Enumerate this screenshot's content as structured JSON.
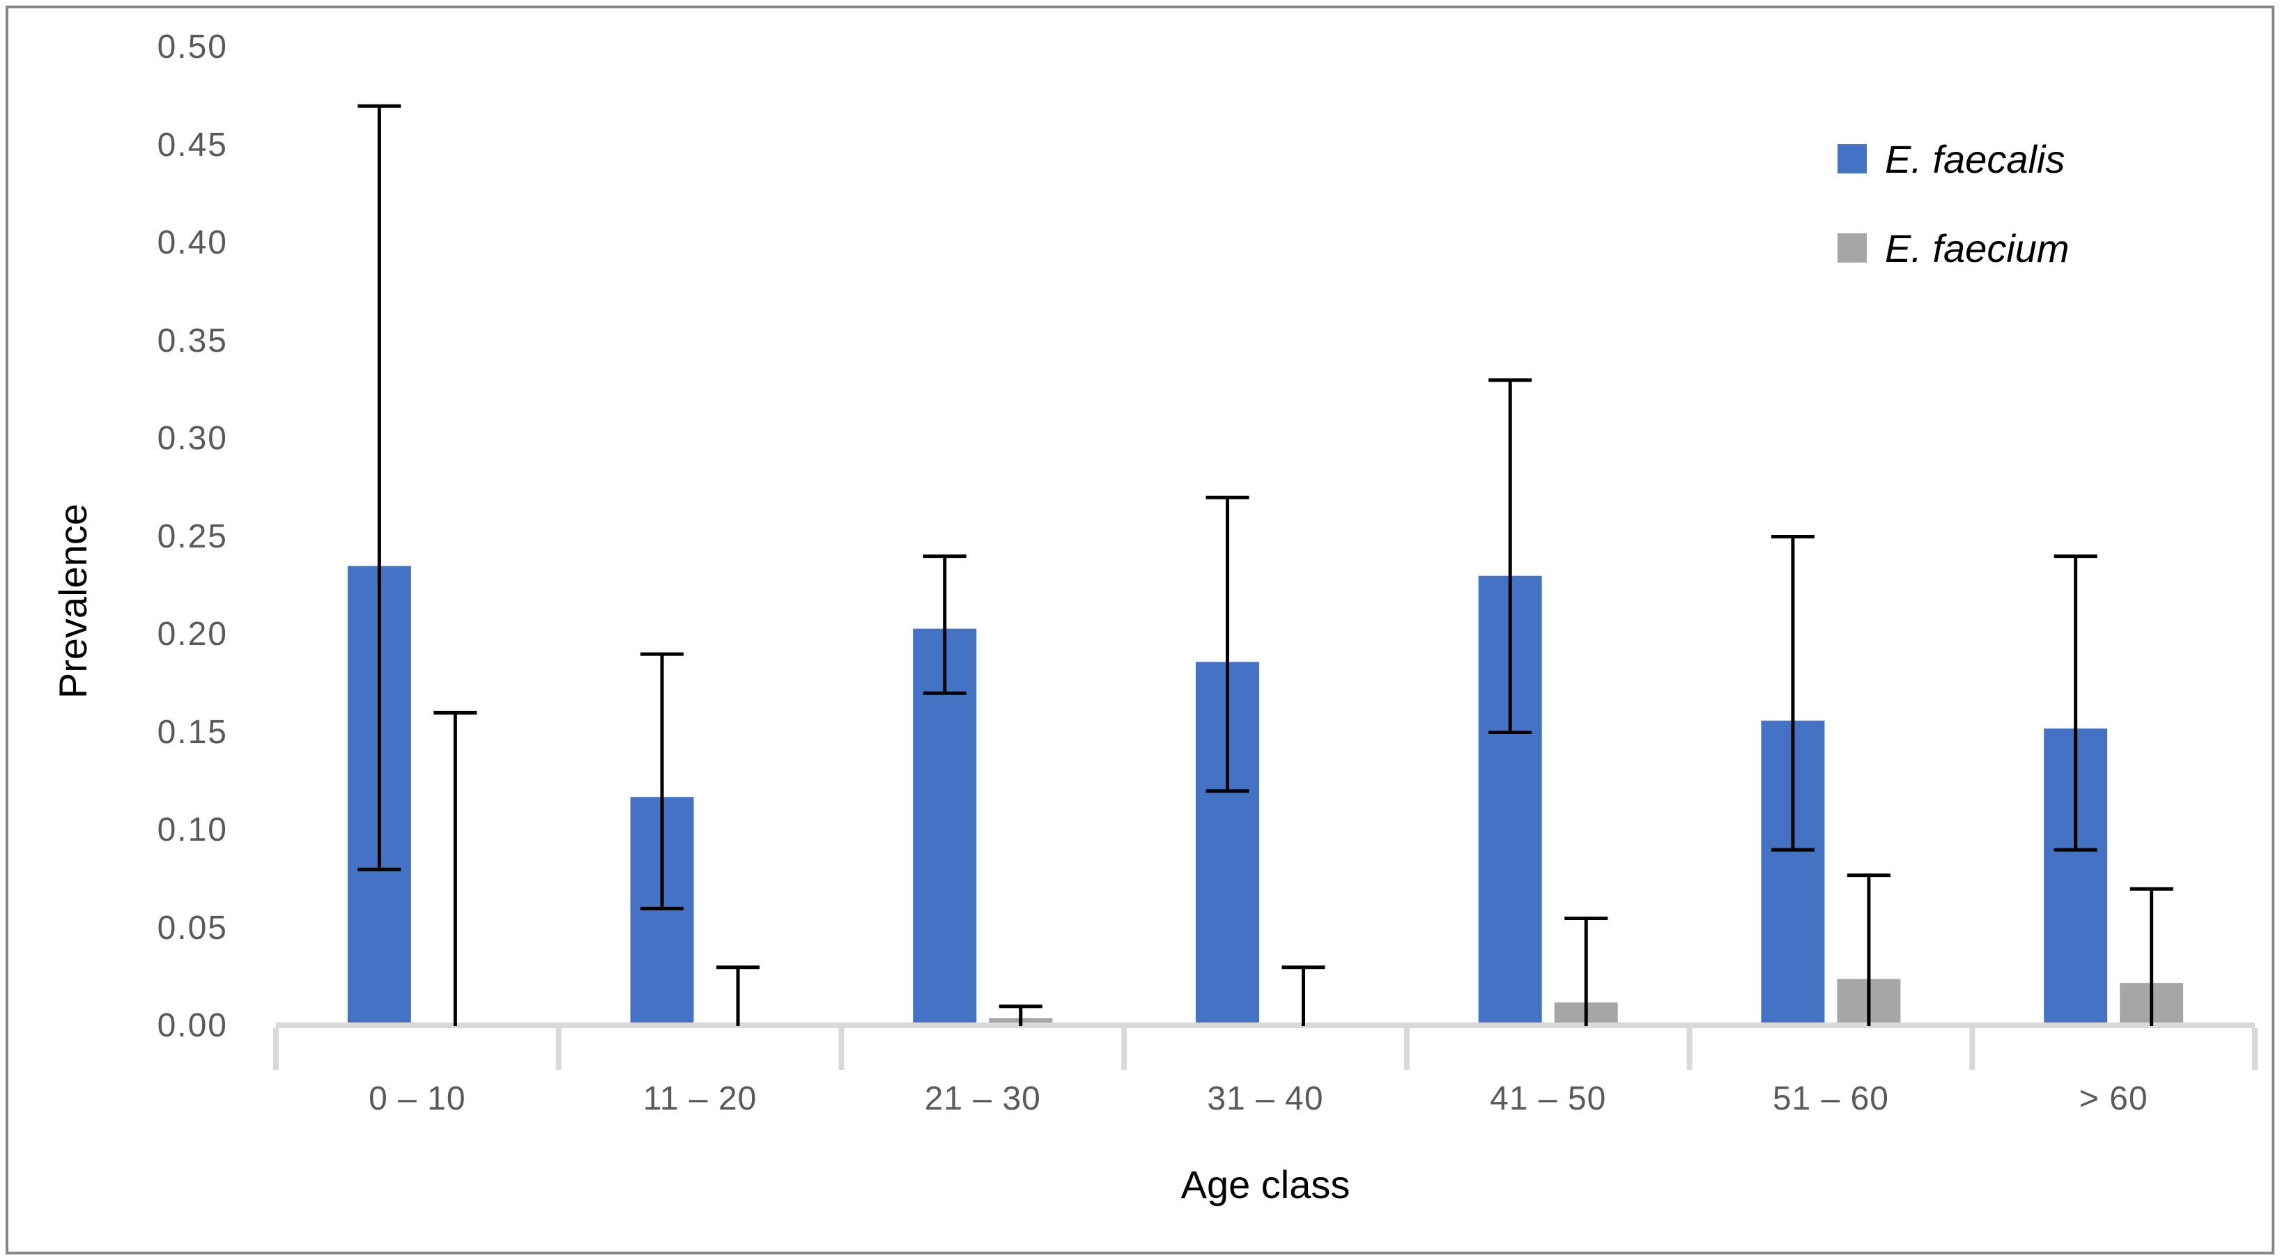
{
  "chart_data": {
    "type": "bar",
    "title": "",
    "xlabel": "Age class",
    "ylabel": "Prevalence",
    "categories": [
      "0 – 10",
      "11 – 20",
      "21 – 30",
      "31 – 40",
      "41 – 50",
      "51 – 60",
      "> 60"
    ],
    "y_ticks": [
      "0.00",
      "0.05",
      "0.10",
      "0.15",
      "0.20",
      "0.25",
      "0.30",
      "0.35",
      "0.40",
      "0.45",
      "0.50"
    ],
    "ylim": [
      0,
      0.5
    ],
    "grid": false,
    "legend_position": "upper-right-inside",
    "series": [
      {
        "name": "E. faecalis",
        "color": "#4472C4",
        "values": [
          0.235,
          0.117,
          0.203,
          0.186,
          0.23,
          0.156,
          0.152
        ],
        "error_low": [
          0.08,
          0.06,
          0.17,
          0.12,
          0.15,
          0.09,
          0.09
        ],
        "error_high": [
          0.47,
          0.19,
          0.24,
          0.27,
          0.33,
          0.25,
          0.24
        ]
      },
      {
        "name": "E. faecium",
        "color": "#A6A6A6",
        "values": [
          0,
          0,
          0.004,
          0,
          0.012,
          0.024,
          0.022
        ],
        "error_low": [
          0,
          0,
          0,
          0,
          0,
          0,
          0
        ],
        "error_high": [
          0.16,
          0.03,
          0.01,
          0.03,
          0.055,
          0.077,
          0.07
        ]
      }
    ]
  },
  "style_colors": {
    "axis_line": "#D9D9D9",
    "tick_label": "#595959",
    "error_bar": "#000000",
    "border": "#868686"
  }
}
